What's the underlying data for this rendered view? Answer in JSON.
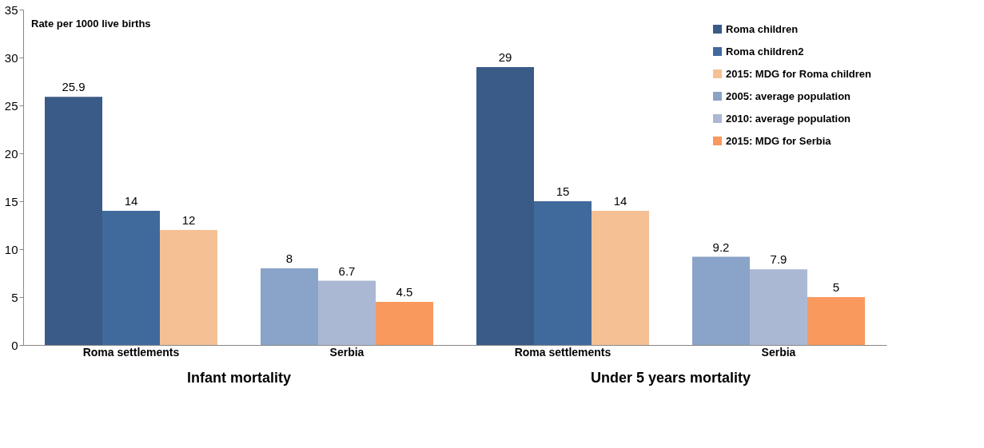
{
  "chart_data": {
    "type": "bar",
    "ylabel": "Rate per 1000 live births",
    "categories": [
      "Roma settlements",
      "Serbia",
      "Roma settlements",
      "Serbia"
    ],
    "series": [
      {
        "name": "Roma children",
        "color": "#3a5a87",
        "values": [
          25.9,
          null,
          29,
          null
        ]
      },
      {
        "name": "Roma children2",
        "color": "#416a9c",
        "values": [
          14,
          null,
          15,
          null
        ]
      },
      {
        "name": "2015: MDG for Roma children",
        "color": "#f5c194",
        "values": [
          12,
          null,
          14,
          null
        ]
      },
      {
        "name": "2005: average population",
        "color": "#8aa3c8",
        "values": [
          null,
          8,
          null,
          9.2
        ]
      },
      {
        "name": "2010: average population",
        "color": "#aab8d4",
        "values": [
          null,
          6.7,
          null,
          7.9
        ]
      },
      {
        "name": "2015: MDG for Serbia",
        "color": "#f9995e",
        "values": [
          null,
          4.5,
          null,
          5
        ]
      }
    ],
    "annotations": [
      "Infant mortality",
      "Under 5 years mortality"
    ],
    "ylim": [
      0,
      35
    ],
    "yticks": [
      0,
      5,
      10,
      15,
      20,
      25,
      30,
      35
    ],
    "data_labels": true,
    "grid": false,
    "legend": "top right"
  }
}
